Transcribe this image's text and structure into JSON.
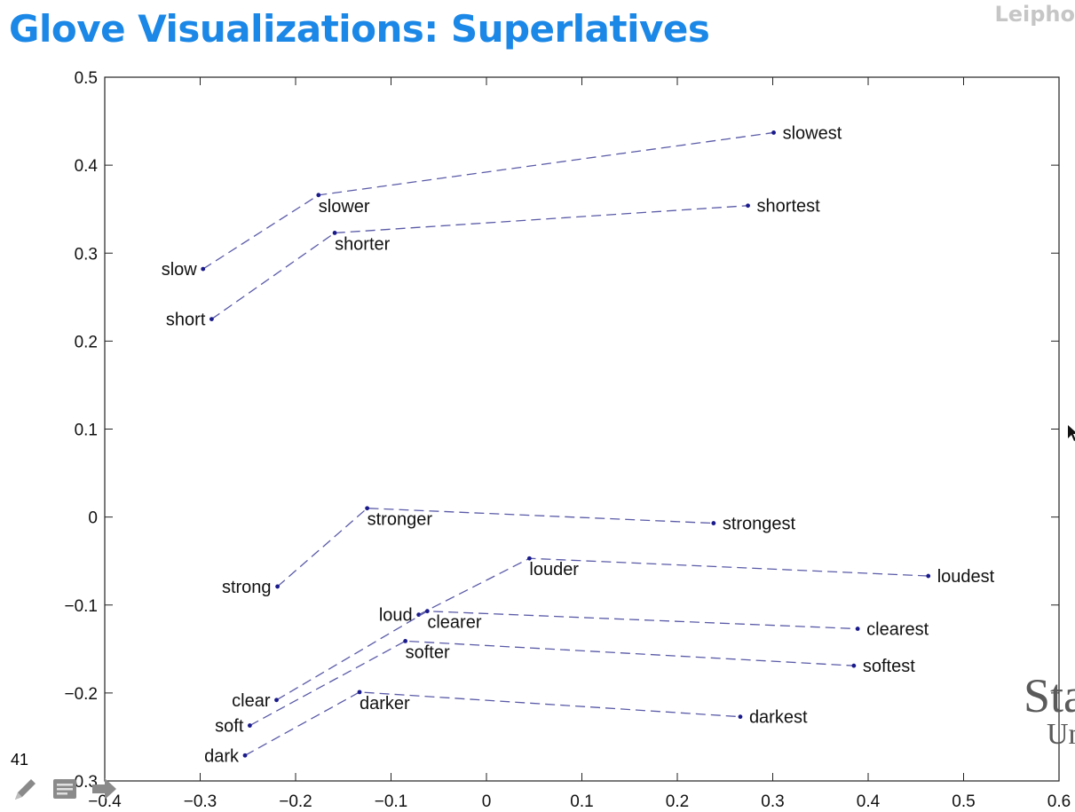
{
  "slide": {
    "title": "Glove Visualizations: Superlatives",
    "watermark": "Leipho",
    "page_number": "41",
    "logo_line1": "Sta",
    "logo_line2": "Un"
  },
  "toolbar": [
    {
      "icon": "pencil-icon"
    },
    {
      "icon": "notes-icon"
    },
    {
      "icon": "arrow-right-icon"
    }
  ],
  "colors": {
    "title": "#1b87e6",
    "line": "#5a5aa8",
    "point": "#1a1a8c"
  },
  "chart_data": {
    "type": "scatter",
    "xlim": [
      -0.4,
      0.6
    ],
    "ylim": [
      -0.3,
      0.5
    ],
    "xticks": [
      -0.4,
      -0.3,
      -0.2,
      -0.1,
      0,
      0.1,
      0.2,
      0.3,
      0.4,
      0.5,
      0.6
    ],
    "yticks": [
      -0.3,
      -0.2,
      -0.1,
      0,
      0.1,
      0.2,
      0.3,
      0.4,
      0.5
    ],
    "xtick_labels": [
      "−0.4",
      "−0.3",
      "−0.2",
      "−0.1",
      "0",
      "0.1",
      "0.2",
      "0.3",
      "0.4",
      "0.5",
      "0.6"
    ],
    "ytick_labels": [
      "−0.3",
      "−0.2",
      "−0.1",
      "0",
      "0.1",
      "0.2",
      "0.3",
      "0.4",
      "0.5"
    ],
    "grid": false,
    "groups": [
      {
        "points": [
          {
            "word": "slow",
            "x": -0.297,
            "y": 0.282
          },
          {
            "word": "slower",
            "x": -0.176,
            "y": 0.366
          },
          {
            "word": "slowest",
            "x": 0.301,
            "y": 0.437
          }
        ]
      },
      {
        "points": [
          {
            "word": "short",
            "x": -0.288,
            "y": 0.225
          },
          {
            "word": "shorter",
            "x": -0.159,
            "y": 0.323
          },
          {
            "word": "shortest",
            "x": 0.274,
            "y": 0.354
          }
        ]
      },
      {
        "points": [
          {
            "word": "strong",
            "x": -0.219,
            "y": -0.079
          },
          {
            "word": "stronger",
            "x": -0.125,
            "y": 0.01
          },
          {
            "word": "strongest",
            "x": 0.238,
            "y": -0.007
          }
        ]
      },
      {
        "points": [
          {
            "word": "loud",
            "x": -0.071,
            "y": -0.111
          },
          {
            "word": "louder",
            "x": 0.045,
            "y": -0.047
          },
          {
            "word": "loudest",
            "x": 0.463,
            "y": -0.067
          }
        ]
      },
      {
        "points": [
          {
            "word": "clear",
            "x": -0.22,
            "y": -0.208
          },
          {
            "word": "clearer",
            "x": -0.062,
            "y": -0.107
          },
          {
            "word": "clearest",
            "x": 0.389,
            "y": -0.127
          }
        ]
      },
      {
        "points": [
          {
            "word": "soft",
            "x": -0.248,
            "y": -0.237
          },
          {
            "word": "softer",
            "x": -0.085,
            "y": -0.141
          },
          {
            "word": "softest",
            "x": 0.385,
            "y": -0.169
          }
        ]
      },
      {
        "points": [
          {
            "word": "dark",
            "x": -0.253,
            "y": -0.271
          },
          {
            "word": "darker",
            "x": -0.133,
            "y": -0.199
          },
          {
            "word": "darkest",
            "x": 0.266,
            "y": -0.227
          }
        ]
      }
    ]
  }
}
